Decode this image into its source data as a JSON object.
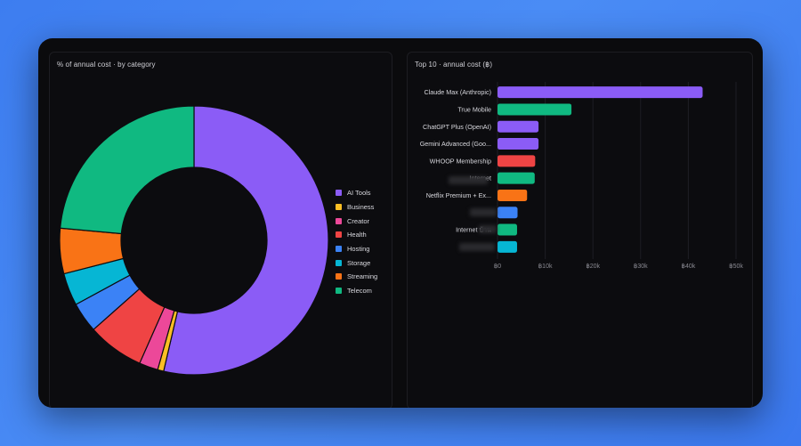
{
  "left_panel": {
    "title": "% of annual cost · by category"
  },
  "right_panel": {
    "title": "Top 10 · annual cost (฿)"
  },
  "chart_data": [
    {
      "type": "pie",
      "subtype": "donut",
      "title": "% of annual cost · by category",
      "legend_position": "right",
      "categories": [
        "AI Tools",
        "Business",
        "Creator",
        "Health",
        "Hosting",
        "Storage",
        "Streaming",
        "Telecom"
      ],
      "values": [
        59.0,
        0.8,
        2.5,
        7.5,
        4.0,
        4.3,
        6.0,
        25.9
      ],
      "colors": [
        "#8b5cf6",
        "#fbbf24",
        "#ec4899",
        "#ef4444",
        "#3b82f6",
        "#06b6d4",
        "#f97316",
        "#10b981"
      ]
    },
    {
      "type": "bar",
      "orientation": "horizontal",
      "title": "Top 10 · annual cost (฿)",
      "categories": [
        "Claude Max (Anthropic)",
        "True Mobile",
        "ChatGPT Plus (OpenAI)",
        "Gemini Advanced (Goo...",
        "WHOOP Membership",
        "Internet",
        "Netflix Premium + Ex...",
        "",
        "Internet บ้าน",
        ""
      ],
      "values": [
        43000,
        15500,
        8600,
        8600,
        7900,
        7800,
        6200,
        4200,
        4100,
        4100
      ],
      "colors": [
        "#8b5cf6",
        "#10b981",
        "#8b5cf6",
        "#8b5cf6",
        "#ef4444",
        "#10b981",
        "#f97316",
        "#3b82f6",
        "#10b981",
        "#06b6d4"
      ],
      "xlim": [
        0,
        50000
      ],
      "xticks": [
        0,
        10000,
        20000,
        30000,
        40000,
        50000
      ],
      "xtick_labels": [
        "฿0",
        "฿10k",
        "฿20k",
        "฿30k",
        "฿40k",
        "฿50k"
      ],
      "grid": true
    }
  ]
}
